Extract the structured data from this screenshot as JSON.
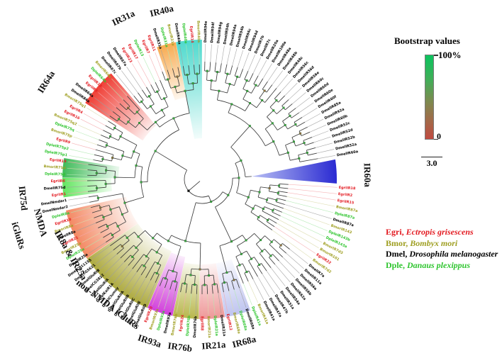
{
  "legend": {
    "bootstrap": {
      "title": "Bootstrap values",
      "max_label": "100%",
      "min_label": "0",
      "gradient_stops": [
        "#0bc45e",
        "#43ad58",
        "#7d8a4f",
        "#a26a49",
        "#c04a41"
      ]
    },
    "scale_bar": {
      "label": "3.0"
    },
    "species": [
      {
        "abbrev": "Egri",
        "prefix": "Egri,",
        "name": "Ectropis grisescens",
        "color": "#e31b22"
      },
      {
        "abbrev": "Bmor",
        "prefix": "Bmor,",
        "name": "Bombyx mori",
        "color": "#9f9f22"
      },
      {
        "abbrev": "Dmel",
        "prefix": "Dmel,",
        "name": "Drosophila melanogaster",
        "color": "#000000"
      },
      {
        "abbrev": "Dple",
        "prefix": "Dple,",
        "name": "Danaus plexippus",
        "color": "#2fc52f"
      }
    ]
  },
  "chart_data": {
    "type": "circular-cladogram",
    "description": "Phylogenetic tree of ionotropic receptors (IRs) and iGluRs from four insect species; branch support shown by node color (bootstrap), clades highlighted by colored sectors.",
    "groups": [
      {
        "name": "dmel-divergent-irs",
        "rleaf": 166,
        "tips": [
          "DmelIR94e",
          "DmelIR94f",
          "DmelIR94g",
          "DmelIR94h",
          "DmelIR94a",
          "DmelIR94b",
          "DmelIR94c",
          "DmelIR94d",
          "DmelIR7b",
          "DmelIR7c",
          "DmelIR20a",
          "DmelIR100a",
          "DmelIR48a",
          "DmelIR48b",
          "DmelIR48c",
          "DmelIR56c",
          "DmelIR56d",
          "DmelIR56e",
          "DmelIR60c",
          "DmelIR60d",
          "DmelIR60e",
          "DmelIR60f",
          "DmelIR85a",
          "DmelIR92a",
          "DmelIR60b",
          "DmelIR52c",
          "DmelIR52d",
          "DmelIR52b",
          "DmelIR52a",
          "DmelIR60a"
        ]
      },
      {
        "name": "IR60a-collapsed",
        "wedge": true,
        "slots": 4,
        "color": "#2a2ad2"
      },
      {
        "name": "ir87a-ir143-cluster",
        "rleaf": 122,
        "tips": [
          "EgriIR18",
          "EgriIR2",
          "EgriIR15",
          "BmorIR87a",
          "DpleIR87a",
          "DmelIR87a",
          "BmorIR143",
          "DpleIR143b",
          "DpleIR143a",
          "BmorIR7d3",
          "BmorIR101",
          "EgriIR22",
          "BmorIR7d2"
        ]
      },
      {
        "name": "ir41a-ir47-cluster",
        "rleaf": 158,
        "tips": [
          "DmelIR7a",
          "DmelIR11a",
          "DmelIR56a",
          "DmelIR56b",
          "DmelIR62a",
          "DmelIR54a",
          "DmelIR51a",
          "DmelIR47b",
          "DmelIR47a",
          "DmelIR41a",
          "BmorIR41a",
          "DpleIR41a"
        ]
      },
      {
        "name": "IR68a",
        "tips": [
          "DmelIR68a",
          "DpleIR68a",
          "BmorIR68a",
          "EgriIR12"
        ],
        "highlights": [
          {
            "start": 0,
            "end": 3,
            "color": "#b9bfee",
            "rin": 120
          }
        ]
      },
      {
        "name": "IR21a",
        "tips": [
          "DmelIR21a",
          "DpleIR21a",
          "BmorIR21a",
          "EgriIR8"
        ],
        "highlights": [
          {
            "start": 0,
            "end": 3,
            "color": "#ec8f8f",
            "rin": 120
          }
        ]
      },
      {
        "name": "IR76b",
        "tips": [
          "DmelIR76b",
          "DpleIR76b",
          "EgriIR24",
          "BmorIR76b"
        ],
        "highlights": [
          {
            "start": 0,
            "end": 3,
            "color": "#b2b13d",
            "rin": 120
          }
        ]
      },
      {
        "name": "IR93a",
        "tips": [
          "DmelIR93a",
          "DpleIR93a",
          "BmorIR93a",
          "EgriIR20"
        ],
        "highlights": [
          {
            "start": 0,
            "end": 3,
            "color": "#cd2fd8",
            "rin": 112
          }
        ]
      },
      {
        "name": "non-NMDA-iGluRs",
        "rleaf": 160,
        "tips": [
          "DmelGluRIID",
          "DmelGluRIIE",
          "DmelGluRIIC",
          "DmelGluRIIB",
          "DmelGluRIIA",
          "DmelClumsy",
          "DmelKaiR1A",
          "DmelGluRIA",
          "DmelCG3822",
          "DmelGluRIB",
          "DmelCG5621",
          "DmelCG11155"
        ],
        "highlights": [
          {
            "start": 0,
            "end": 11,
            "color": "#a6a22e",
            "rin": 110
          }
        ]
      },
      {
        "name": "IR8a-IR25a",
        "tips": [
          "DmelIR25a",
          "DpleIR25a",
          "BmorIR25a",
          "EgriIR21",
          "DmelIR8a",
          "BmorIR8a",
          "EgriIR10",
          "DpleIR8a"
        ],
        "highlights": [
          {
            "start": 0,
            "end": 7,
            "color": "#f27e55",
            "rin": 110
          }
        ]
      },
      {
        "name": "NMDA",
        "tips": [
          "DmelNmdar2",
          "DmelNmdar1"
        ]
      },
      {
        "name": "IR75d",
        "tips": [
          "EgriIR1",
          "DmelIR75d",
          "EgriIR6",
          "DpleIR75d",
          "BmorIR75d",
          "EgriIR19"
        ],
        "highlights": [
          {
            "start": 0,
            "end": 2,
            "color": "#55e352",
            "rin": 128
          },
          {
            "start": 3,
            "end": 5,
            "color": "#2eb54b",
            "rin": 118
          }
        ]
      },
      {
        "name": "ir75p-ir75q-cluster",
        "rleaf": 156,
        "tips": [
          "DpleIR75p1",
          "DpleIR75p2",
          "EgriIR9",
          "BmorIR75p",
          "DpleIR75q",
          "BmorIR75q2",
          "EgriIR16",
          "EgriIR4",
          "BmorIR75q1"
        ]
      },
      {
        "name": "IR64a",
        "rleaf": 158,
        "tips": [
          "DmelIR84a",
          "DmelIR64a",
          "EgriIR3",
          "EgriIR13",
          "DpleIR64a",
          "BmorIR64a"
        ],
        "highlights": [
          {
            "start": 0,
            "end": 5,
            "color": "#ee2e24",
            "rin": 100
          }
        ]
      },
      {
        "name": "ir67-cluster",
        "rleaf": 152,
        "tips": [
          "DmelIR67c",
          "DmelIR67b",
          "DmelIR67a",
          "EgriIR23",
          "EgriIR17",
          "DpleIR13",
          "EgriIR7"
        ]
      },
      {
        "name": "IR31a",
        "tips": [
          "EgriIR11",
          "DmelIR31a",
          "DpleIR31a",
          "BmorIR31a"
        ],
        "highlights": [
          {
            "start": 1,
            "end": 3,
            "color": "#f7a341",
            "rin": 118
          }
        ]
      },
      {
        "name": "IR40a",
        "tips": [
          "DmelIR40a",
          "DpleIR40a",
          "EgriIR14",
          "BmorIR40a"
        ],
        "highlights": [
          {
            "start": 0,
            "end": 3,
            "color": "#40d6c9",
            "rin": 58
          }
        ]
      }
    ],
    "clade_labels": [
      {
        "text": "IR31a",
        "angle": 244,
        "radius": 252
      },
      {
        "text": "IR40a",
        "angle": 256.5,
        "radius": 243
      },
      {
        "text": "IR64a",
        "angle": 212,
        "radius": 258
      },
      {
        "text": "IR75d",
        "angle": 174,
        "radius": 255
      },
      {
        "text": "NMDA",
        "angle": 165,
        "radius": 237
      },
      {
        "text": "IR8a & IR25a",
        "angle": 150,
        "radius": 215
      },
      {
        "text": "iGluRs",
        "angle": 163,
        "radius": 272
      },
      {
        "text": "non-NMDA iGluRs",
        "angle": 127,
        "radius": 222
      },
      {
        "text": "IR93a",
        "angle": 108,
        "radius": 241
      },
      {
        "text": "IR76b",
        "angle": 97.5,
        "radius": 240
      },
      {
        "text": "IR21a",
        "angle": 86,
        "radius": 236
      },
      {
        "text": "IR68a",
        "angle": 75.5,
        "radius": 238
      },
      {
        "text": "IR60a",
        "angle": -1.5,
        "radius": 232
      }
    ]
  }
}
